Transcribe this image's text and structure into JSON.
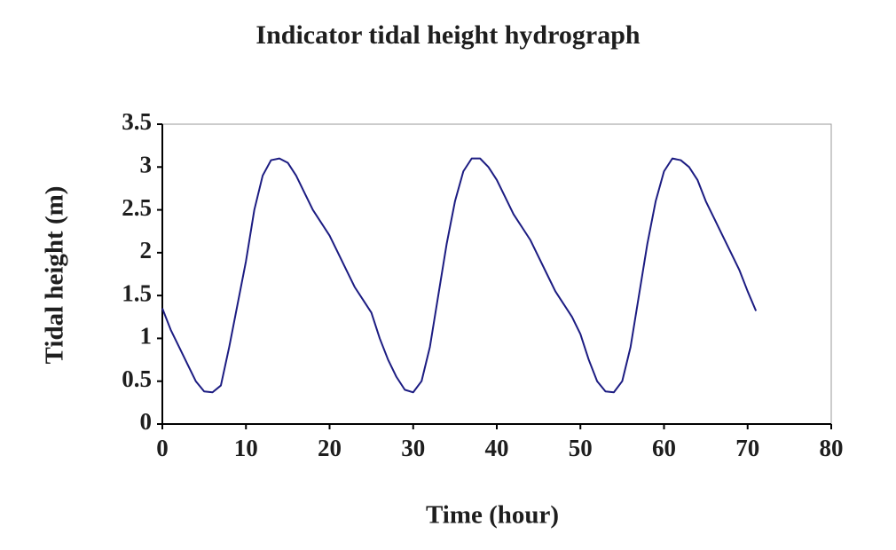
{
  "chart_data": {
    "type": "line",
    "title": "Indicator tidal height hydrograph",
    "x_label": "Time (hour)",
    "y_label": "Tidal height (m)",
    "x": [
      0,
      1,
      2,
      3,
      4,
      5,
      6,
      7,
      8,
      9,
      10,
      11,
      12,
      13,
      14,
      15,
      16,
      17,
      18,
      19,
      20,
      21,
      22,
      23,
      24,
      25,
      26,
      27,
      28,
      29,
      30,
      31,
      32,
      33,
      34,
      35,
      36,
      37,
      38,
      39,
      40,
      41,
      42,
      43,
      44,
      45,
      46,
      47,
      48,
      49,
      50,
      51,
      52,
      53,
      54,
      55,
      56,
      57,
      58,
      59,
      60,
      61,
      62,
      63,
      64,
      65,
      66,
      67,
      68,
      69,
      70,
      71
    ],
    "values": [
      1.35,
      1.1,
      0.9,
      0.7,
      0.5,
      0.38,
      0.37,
      0.45,
      0.9,
      1.4,
      1.9,
      2.5,
      2.9,
      3.08,
      3.1,
      3.05,
      2.9,
      2.7,
      2.5,
      2.35,
      2.2,
      2.0,
      1.8,
      1.6,
      1.45,
      1.3,
      1.0,
      0.75,
      0.55,
      0.4,
      0.37,
      0.5,
      0.9,
      1.5,
      2.1,
      2.6,
      2.95,
      3.1,
      3.1,
      3.0,
      2.85,
      2.65,
      2.45,
      2.3,
      2.15,
      1.95,
      1.75,
      1.55,
      1.4,
      1.25,
      1.05,
      0.75,
      0.5,
      0.38,
      0.37,
      0.5,
      0.9,
      1.5,
      2.1,
      2.6,
      2.95,
      3.1,
      3.08,
      3.0,
      2.85,
      2.6,
      2.4,
      2.2,
      2.0,
      1.8,
      1.55,
      1.32
    ],
    "color": "#1c1c82",
    "xlim": [
      0,
      80
    ],
    "xticks": [
      0,
      10,
      20,
      30,
      40,
      50,
      60,
      70,
      80
    ],
    "ylim": [
      0,
      3.5
    ],
    "yticks": [
      0,
      0.5,
      1,
      1.5,
      2,
      2.5,
      3,
      3.5
    ],
    "grid": false
  }
}
